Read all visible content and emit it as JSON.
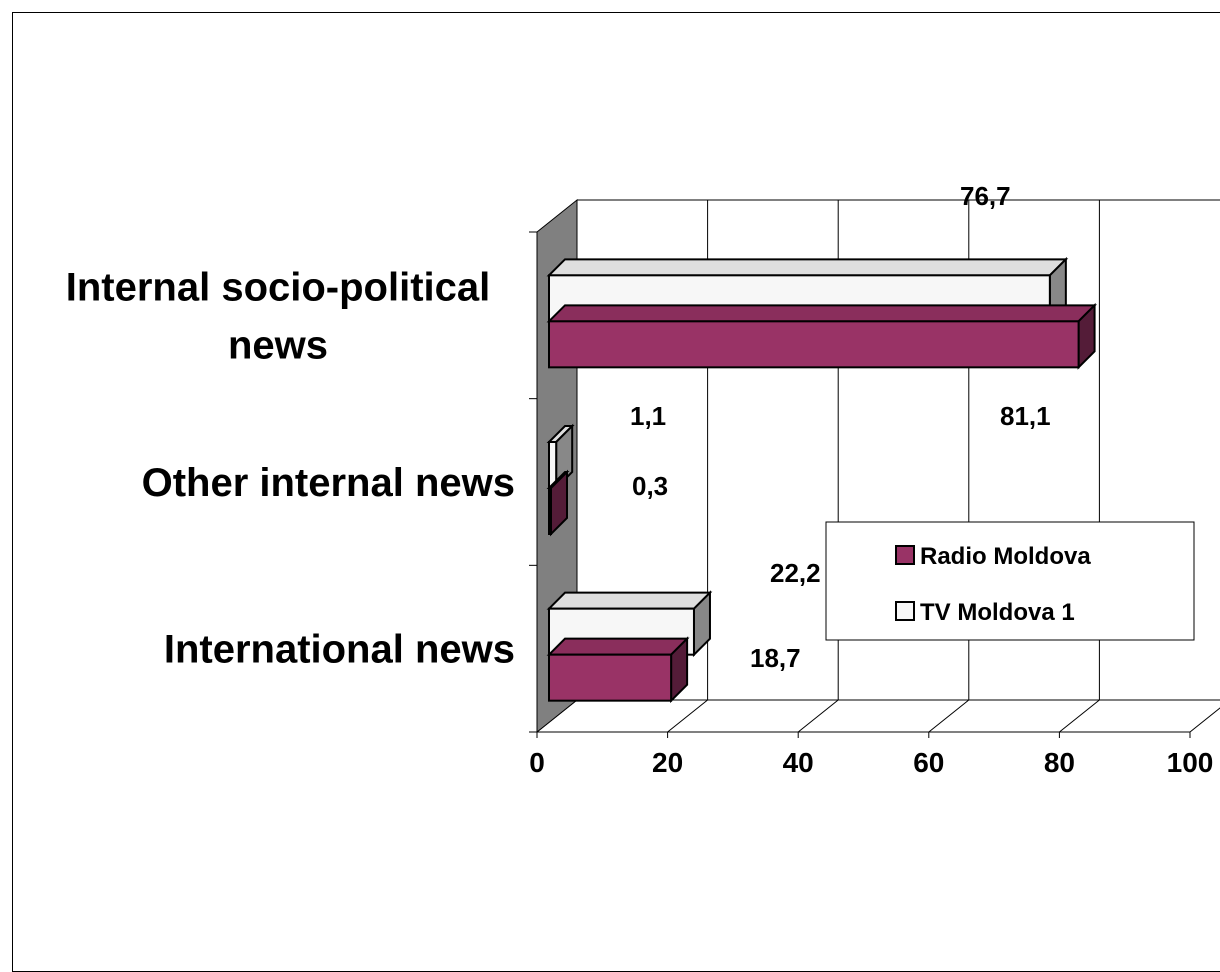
{
  "chart_data": {
    "type": "bar",
    "orientation": "horizontal",
    "three_d": true,
    "categories": [
      "Internal socio-political news",
      "Other internal news",
      "International news"
    ],
    "series": [
      {
        "name": "Radio Moldova",
        "values": [
          81.1,
          0.3,
          18.7
        ],
        "color": "#993366"
      },
      {
        "name": "TV Moldova 1",
        "values": [
          76.7,
          1.1,
          22.2
        ],
        "color": "#f7f7f7"
      }
    ],
    "data_labels": {
      "Radio Moldova": [
        "81,1",
        "0,3",
        "18,7"
      ],
      "TV Moldova 1": [
        "76,7",
        "1,1",
        "22,2"
      ]
    },
    "xlim": [
      0,
      100
    ],
    "x_ticks": [
      0,
      20,
      40,
      60,
      80,
      100
    ],
    "x_tick_labels": [
      "0",
      "20",
      "40",
      "60",
      "80",
      "100"
    ],
    "grid": true,
    "legend": {
      "placement": "bottom-right",
      "entries": [
        "Radio Moldova",
        "TV Moldova 1"
      ]
    },
    "wall_color": "#808080",
    "edge_color": "#000000"
  }
}
